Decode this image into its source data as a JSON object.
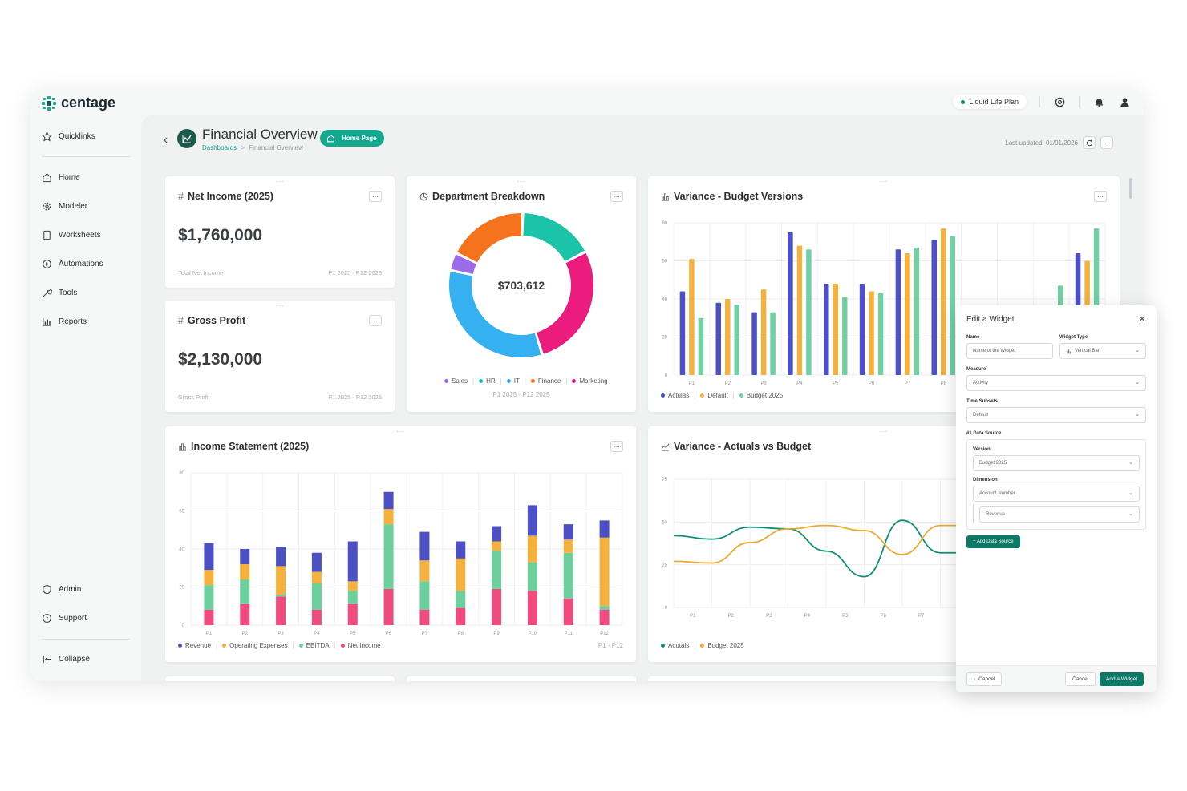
{
  "brand": {
    "name": "centage",
    "accent": "#13a98f"
  },
  "topbar": {
    "plan": "Liquid Life Plan",
    "icons": [
      "at-icon",
      "bell-icon",
      "user-icon"
    ]
  },
  "sidebar": {
    "items_top": [
      {
        "label": "Quicklinks",
        "icon": "star-icon"
      }
    ],
    "items": [
      {
        "label": "Home",
        "icon": "home-icon"
      },
      {
        "label": "Modeler",
        "icon": "gear-icon"
      },
      {
        "label": "Worksheets",
        "icon": "sheet-icon"
      },
      {
        "label": "Automations",
        "icon": "automation-icon"
      },
      {
        "label": "Tools",
        "icon": "tools-icon"
      },
      {
        "label": "Reports",
        "icon": "reports-icon"
      }
    ],
    "items_bottom": [
      {
        "label": "Admin",
        "icon": "shield-icon"
      },
      {
        "label": "Support",
        "icon": "help-icon"
      }
    ],
    "collapse": "Collapse"
  },
  "header": {
    "title": "Financial Overview",
    "breadcrumb_root": "Dashboards",
    "breadcrumb_sep": ">",
    "breadcrumb_current": "Financial Overview",
    "home_pill": "Home Page",
    "last_updated": "Last updated: 01/01/2026"
  },
  "cards": {
    "net_income": {
      "title": "Net Income (2025)",
      "value": "$1,760,000",
      "foot_left": "Total Net Income",
      "foot_right": "P1 2025 - P12 2025"
    },
    "gross_profit": {
      "title": "Gross Profit",
      "value": "$2,130,000",
      "foot_left": "Gross Profit",
      "foot_right": "P1 2025 - P12 2025"
    },
    "department": {
      "title": "Department Breakdown",
      "center": "$703,612",
      "period": "P1 2025 - P12 2025"
    },
    "variance_budget": {
      "title": "Variance - Budget Versions"
    },
    "income_statement": {
      "title": "Income Statement (2025)",
      "period": "P1 - P12"
    },
    "variance_actuals": {
      "title": "Variance - Actuals vs Budget"
    }
  },
  "chart_data": [
    {
      "type": "pie",
      "title": "Department Breakdown",
      "categories": [
        "Sales",
        "HR",
        "IT",
        "Finance",
        "Marketing"
      ],
      "values": [
        4,
        17,
        33,
        18,
        28
      ],
      "colors": [
        "#9b6be8",
        "#1bc4a8",
        "#35b0f0",
        "#f4731c",
        "#ec1c7e"
      ],
      "legend": "bottom"
    },
    {
      "type": "bar",
      "title": "Variance - Budget Versions",
      "categories": [
        "P1",
        "P2",
        "P3",
        "P4",
        "P5",
        "P6",
        "P7",
        "P8",
        "P9",
        "P10",
        "P11",
        "P12"
      ],
      "series": [
        {
          "name": "Actulas",
          "color": "#4d4fc4",
          "values": [
            44,
            38,
            33,
            75,
            48,
            48,
            66,
            71,
            5,
            26,
            33,
            64
          ]
        },
        {
          "name": "Default",
          "color": "#f5b13d",
          "values": [
            61,
            40,
            45,
            68,
            48,
            44,
            64,
            77,
            10,
            30,
            36,
            60
          ]
        },
        {
          "name": "Budget 2025",
          "color": "#71d0a4",
          "values": [
            30,
            37,
            33,
            66,
            41,
            43,
            67,
            73,
            16,
            32,
            47,
            77
          ]
        }
      ],
      "ylim": [
        0,
        80
      ],
      "yticks": [
        0,
        20,
        40,
        60,
        80
      ],
      "legend": "bottom-left"
    },
    {
      "type": "bar",
      "title": "Income Statement (2025)",
      "stacked": true,
      "categories": [
        "P1",
        "P2",
        "P3",
        "P4",
        "P5",
        "P6",
        "P7",
        "P8",
        "P9",
        "P10",
        "P11",
        "P12"
      ],
      "series": [
        {
          "name": "Net Income",
          "color": "#ef4b7f",
          "values": [
            8,
            11,
            15,
            8,
            11,
            19,
            8,
            9,
            19,
            18,
            14,
            8
          ]
        },
        {
          "name": "EBITDA",
          "color": "#6ccf9c",
          "values": [
            13,
            13,
            1,
            14,
            7,
            34,
            15,
            9,
            20,
            15,
            24,
            2
          ]
        },
        {
          "name": "Operating Expenses",
          "color": "#f5b13d",
          "values": [
            8,
            8,
            15,
            6,
            5,
            8,
            11,
            17,
            5,
            14,
            7,
            36
          ]
        },
        {
          "name": "Revenue",
          "color": "#4d4fc4",
          "values": [
            14,
            8,
            10,
            10,
            21,
            9,
            15,
            9,
            8,
            16,
            8,
            9
          ]
        }
      ],
      "ylim": [
        0,
        80
      ],
      "yticks": [
        0,
        20,
        40,
        60,
        80
      ],
      "legend_order": [
        "Revenue",
        "Operating Expenses",
        "EBITDA",
        "Net Income"
      ],
      "legend": "bottom-left"
    },
    {
      "type": "line",
      "title": "Variance - Actuals vs Budget",
      "categories": [
        "P1",
        "P2",
        "P3",
        "P4",
        "P5",
        "P6",
        "P7",
        "P8"
      ],
      "series": [
        {
          "name": "Acutals",
          "color": "#0f8f78",
          "values": [
            42,
            40,
            47,
            46,
            33,
            18,
            51,
            32
          ]
        },
        {
          "name": "Budget 2025",
          "color": "#f0a82e",
          "values": [
            27,
            26,
            38,
            46,
            48,
            45,
            31,
            48
          ]
        }
      ],
      "ylim": [
        0,
        75
      ],
      "yticks": [
        0,
        25,
        50,
        75
      ],
      "legend": "bottom-left"
    }
  ],
  "modal": {
    "title": "Edit a Widget",
    "name_label": "Name",
    "name_placeholder": "Name of the Widget",
    "type_label": "Widget Type",
    "type_value": "Vertical Bar",
    "measure_label": "Measure",
    "measure_value": "Activity",
    "subsets_label": "Time Subsets",
    "subsets_value": "Default",
    "ds_label": "#1 Data Source",
    "version_label": "Version",
    "version_value": "Budget 2025",
    "dimension_label": "Dimension",
    "dimension_value": "Account Number",
    "dimension_sub_value": "Revenue",
    "add_ds": "+ Add Data Source",
    "cancel_back": "Cancel",
    "cancel": "Cancel",
    "add_widget": "Add a Widget"
  }
}
